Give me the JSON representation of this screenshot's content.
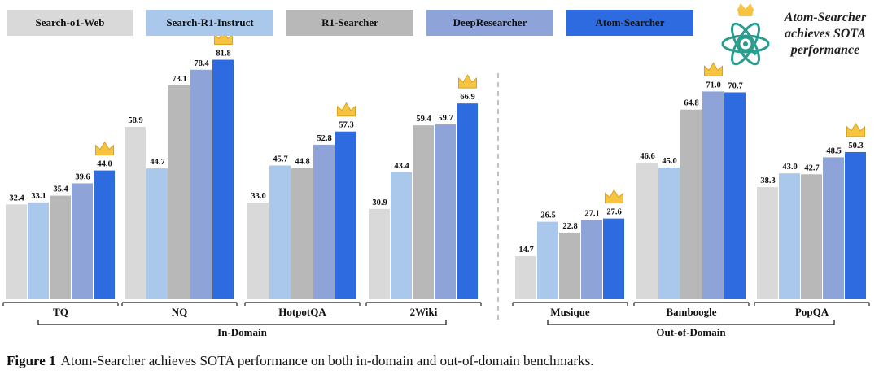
{
  "chart_data": {
    "type": "bar",
    "series": [
      {
        "name": "Search-o1-Web",
        "color": "#d9d9d9"
      },
      {
        "name": "Search-R1-Instruct",
        "color": "#a9c8ec"
      },
      {
        "name": "R1-Searcher",
        "color": "#b8b8b8"
      },
      {
        "name": "DeepResearcher",
        "color": "#8ea4d9"
      },
      {
        "name": "Atom-Searcher",
        "color": "#2e6be0"
      }
    ],
    "groups": [
      {
        "name": "In-Domain",
        "categories": [
          {
            "name": "TQ",
            "values": [
              32.4,
              33.1,
              35.4,
              39.6,
              44.0
            ],
            "labels": [
              "32.4",
              "33.1",
              "35.4",
              "39.6",
              "44.0"
            ]
          },
          {
            "name": "NQ",
            "values": [
              58.9,
              44.7,
              73.1,
              78.4,
              81.8
            ],
            "labels": [
              "58.9",
              "44.7",
              "73.1",
              "78.4",
              "81.8"
            ]
          },
          {
            "name": "HotpotQA",
            "values": [
              33.0,
              45.7,
              44.8,
              52.8,
              57.3
            ],
            "labels": [
              "33.0",
              "45.7",
              "44.8",
              "52.8",
              "57.3"
            ]
          },
          {
            "name": "2Wiki",
            "values": [
              30.9,
              43.4,
              59.4,
              59.7,
              66.9
            ],
            "labels": [
              "30.9",
              "43.4",
              "59.4",
              "59.7",
              "66.9"
            ]
          }
        ]
      },
      {
        "name": "Out-of-Domain",
        "categories": [
          {
            "name": "Musique",
            "values": [
              14.7,
              26.5,
              22.8,
              27.1,
              27.6
            ],
            "labels": [
              "14.7",
              "26.5",
              "22.8",
              "27.1",
              "27.6"
            ]
          },
          {
            "name": "Bamboogle",
            "values": [
              46.6,
              45.0,
              64.8,
              71.0,
              70.7
            ],
            "labels": [
              "46.6",
              "45.0",
              "64.8",
              "71.0",
              "70.7"
            ]
          },
          {
            "name": "PopQA",
            "values": [
              38.3,
              43.0,
              42.7,
              48.5,
              50.3
            ],
            "labels": [
              "38.3",
              "43.0",
              "42.7",
              "48.5",
              "50.3"
            ]
          }
        ]
      }
    ],
    "best_markers": [
      "44.0",
      "81.8",
      "57.3",
      "66.9",
      "27.6",
      "71.0",
      "50.3"
    ],
    "grid": false
  },
  "badge": {
    "text": "Atom-Searcher achieves SOTA performance"
  },
  "caption": {
    "label": "Figure 1",
    "text": "Atom-Searcher achieves SOTA performance on both in-domain and out-of-domain benchmarks."
  },
  "colors": {
    "crown": "#f5c542",
    "logo": "#2a9d8f"
  }
}
